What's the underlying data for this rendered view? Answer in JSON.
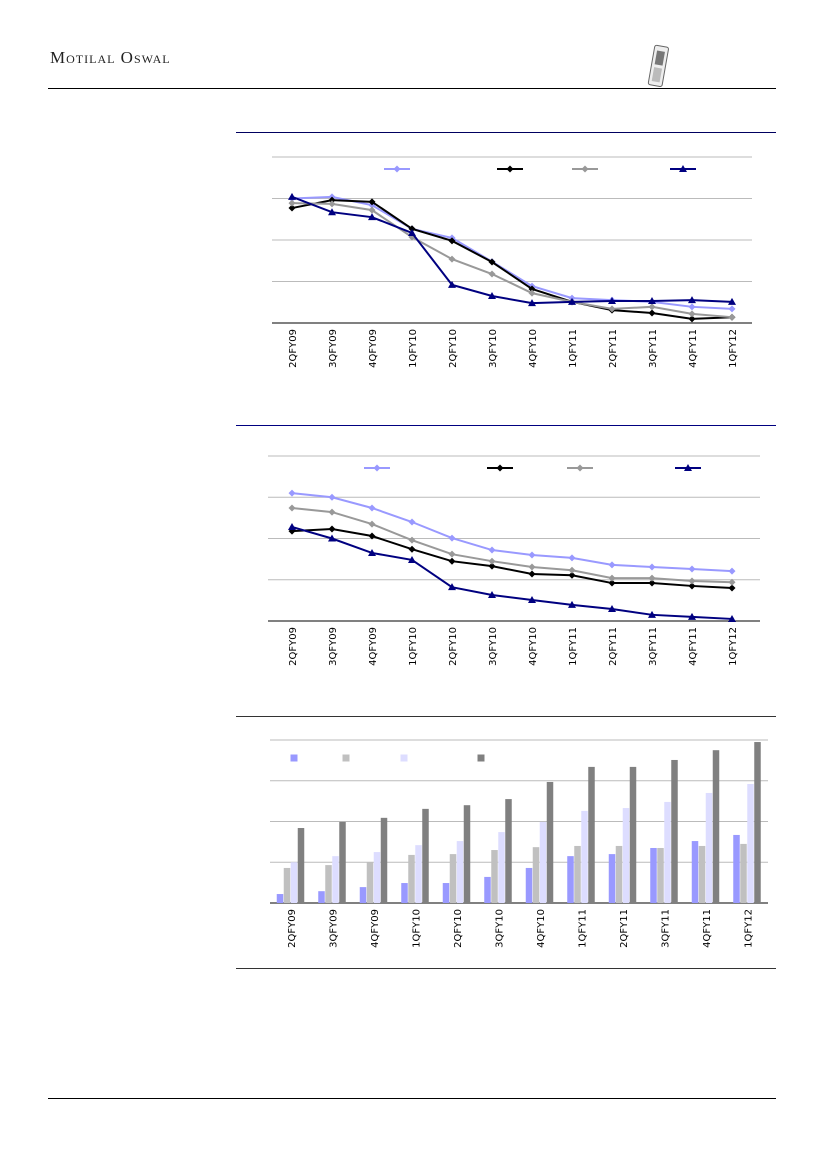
{
  "header": {
    "brand": "Motilal Oswal",
    "icon": "mobile-phone-icon"
  },
  "colors": {
    "light_blue": "#9999ff",
    "black": "#000000",
    "gray": "#999999",
    "navy": "#000080",
    "bar_gray": "#c0c0c0",
    "lavender": "#ddddff",
    "dark_gray": "#808080"
  },
  "chart_data": [
    {
      "type": "line",
      "categories": [
        "2QFY09",
        "3QFY09",
        "4QFY09",
        "1QFY10",
        "2QFY10",
        "3QFY10",
        "4QFY10",
        "1QFY11",
        "2QFY11",
        "3QFY11",
        "4QFY11",
        "1QFY12"
      ],
      "ylim": [
        0,
        4
      ],
      "grid": true,
      "legend": "top",
      "series": [
        {
          "color": "#9999ff",
          "marker": "diamond",
          "values": [
            3.0,
            3.04,
            2.84,
            2.27,
            2.05,
            1.48,
            0.89,
            0.6,
            0.55,
            0.51,
            0.39,
            0.34
          ]
        },
        {
          "color": "#000000",
          "marker": "diamond",
          "values": [
            2.77,
            2.96,
            2.92,
            2.27,
            1.98,
            1.47,
            0.82,
            0.51,
            0.31,
            0.24,
            0.1,
            0.14
          ]
        },
        {
          "color": "#999999",
          "marker": "diamond",
          "values": [
            2.89,
            2.87,
            2.72,
            2.07,
            1.54,
            1.18,
            0.72,
            0.51,
            0.34,
            0.39,
            0.22,
            0.14
          ]
        },
        {
          "color": "#000080",
          "marker": "triangle",
          "values": [
            3.04,
            2.67,
            2.55,
            2.17,
            0.92,
            0.65,
            0.48,
            0.51,
            0.53,
            0.53,
            0.55,
            0.51
          ]
        }
      ]
    },
    {
      "type": "line",
      "categories": [
        "2QFY09",
        "3QFY09",
        "4QFY09",
        "1QFY10",
        "2QFY10",
        "3QFY10",
        "4QFY10",
        "1QFY11",
        "2QFY11",
        "3QFY11",
        "4QFY11",
        "1QFY12"
      ],
      "ylim": [
        0,
        4
      ],
      "grid": true,
      "legend": "top",
      "series": [
        {
          "color": "#9999ff",
          "marker": "diamond",
          "values": [
            3.1,
            3.0,
            2.74,
            2.4,
            2.01,
            1.72,
            1.6,
            1.53,
            1.36,
            1.31,
            1.26,
            1.21
          ]
        },
        {
          "color": "#000000",
          "marker": "diamond",
          "values": [
            2.18,
            2.23,
            2.06,
            1.74,
            1.45,
            1.33,
            1.14,
            1.11,
            0.92,
            0.92,
            0.85,
            0.8
          ]
        },
        {
          "color": "#999999",
          "marker": "diamond",
          "values": [
            2.74,
            2.64,
            2.35,
            1.96,
            1.62,
            1.45,
            1.31,
            1.23,
            1.04,
            1.04,
            0.97,
            0.94
          ]
        },
        {
          "color": "#000080",
          "marker": "triangle",
          "values": [
            2.28,
            2.0,
            1.65,
            1.48,
            0.82,
            0.63,
            0.51,
            0.39,
            0.29,
            0.15,
            0.1,
            0.05
          ]
        }
      ]
    },
    {
      "type": "bar",
      "categories": [
        "2QFY09",
        "3QFY09",
        "4QFY09",
        "1QFY10",
        "2QFY10",
        "3QFY10",
        "4QFY10",
        "1QFY11",
        "2QFY11",
        "3QFY11",
        "4QFY11",
        "1QFY12"
      ],
      "ylim": [
        0,
        4
      ],
      "grid": true,
      "legend": "top-left",
      "series": [
        {
          "color": "#9999ff",
          "values": [
            0.22,
            0.29,
            0.39,
            0.49,
            0.49,
            0.64,
            0.86,
            1.15,
            1.2,
            1.35,
            1.52,
            1.67
          ]
        },
        {
          "color": "#c0c0c0",
          "values": [
            0.86,
            0.93,
            1.0,
            1.18,
            1.2,
            1.3,
            1.37,
            1.4,
            1.4,
            1.35,
            1.4,
            1.45
          ]
        },
        {
          "color": "#ddddff",
          "values": [
            1.0,
            1.15,
            1.25,
            1.42,
            1.52,
            1.74,
            1.99,
            2.26,
            2.33,
            2.48,
            2.7,
            2.92
          ]
        },
        {
          "color": "#808080",
          "values": [
            1.84,
            1.99,
            2.09,
            2.31,
            2.4,
            2.55,
            2.97,
            3.34,
            3.34,
            3.51,
            3.75,
            3.95
          ]
        }
      ]
    }
  ]
}
